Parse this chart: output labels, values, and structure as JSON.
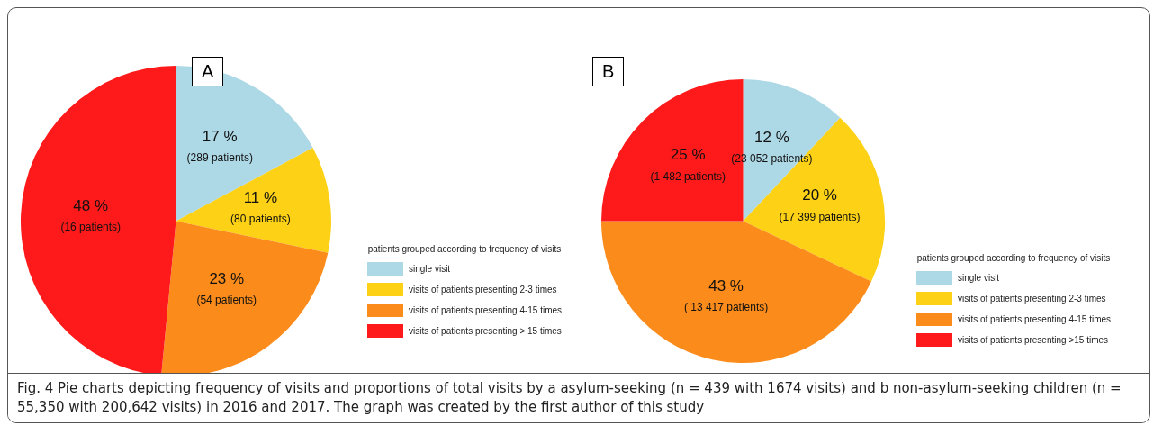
{
  "chart_data": [
    {
      "type": "pie",
      "title": "A",
      "legend_title": "patients grouped according to frequency of visits",
      "legend": "right",
      "categories": [
        "single visit",
        "visits of patients presenting 2-3 times",
        "visits of patients presenting 4-15 times",
        "visits of patients presenting > 15 times"
      ],
      "values": [
        17,
        11,
        23,
        48
      ],
      "colors": [
        "#add8e6",
        "#fcd116",
        "#fb8c1c",
        "#fe1a1a"
      ],
      "value_labels": [
        "17 %\n(289 patients)",
        "11 %\n(80 patients)",
        "23 %\n(54 patients)",
        "48 %\n(16 patients)"
      ],
      "annotations": [
        "Fig. 4 Pie charts depicting frequency of visits and proportions of total visits by a asylum-seeking (n = 439 with 1674 visits) and b non-asylum-seeking children (n = 55,350 with 200,642 visits) in 2016 and 2017. The graph was created by the first author of this study"
      ]
    },
    {
      "type": "pie",
      "title": "B",
      "legend_title": "patients grouped according to frequency of visits",
      "legend": "right",
      "categories": [
        "single visit",
        "visits of patients presenting 2-3 times",
        "visits of patients presenting 4-15 times",
        "visits of patients presenting >15  times"
      ],
      "values": [
        12,
        20,
        43,
        25
      ],
      "colors": [
        "#add8e6",
        "#fcd116",
        "#fb8c1c",
        "#fe1a1a"
      ],
      "value_labels": [
        "12 %\n(23 052 patients)",
        "20 %\n(17 399 patients)",
        "43 %\n( 13 417 patients)",
        "25 %\n(1 482 patients)"
      ]
    }
  ]
}
